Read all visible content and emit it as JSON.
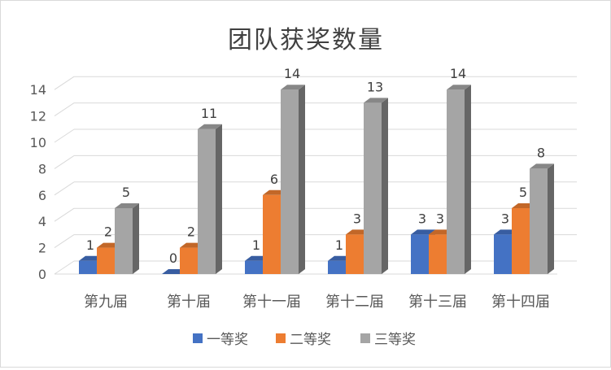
{
  "chart_data": {
    "type": "bar",
    "title": "团队获奖数量",
    "categories": [
      "第九届",
      "第十届",
      "第十一届",
      "第十二届",
      "第十三届",
      "第十四届"
    ],
    "series": [
      {
        "name": "一等奖",
        "values": [
          1,
          0,
          1,
          1,
          3,
          3
        ],
        "color": "#4472c4"
      },
      {
        "name": "二等奖",
        "values": [
          2,
          2,
          6,
          3,
          3,
          5
        ],
        "color": "#ed7d31"
      },
      {
        "name": "三等奖",
        "values": [
          5,
          11,
          14,
          13,
          14,
          8
        ],
        "color": "#a5a5a5"
      }
    ],
    "yticks": [
      "0",
      "2",
      "4",
      "6",
      "8",
      "10",
      "12",
      "14"
    ],
    "ylim": [
      0,
      14
    ],
    "grid": true,
    "style": "3d-clustered-column",
    "data_labels": true,
    "legend_position": "bottom"
  }
}
